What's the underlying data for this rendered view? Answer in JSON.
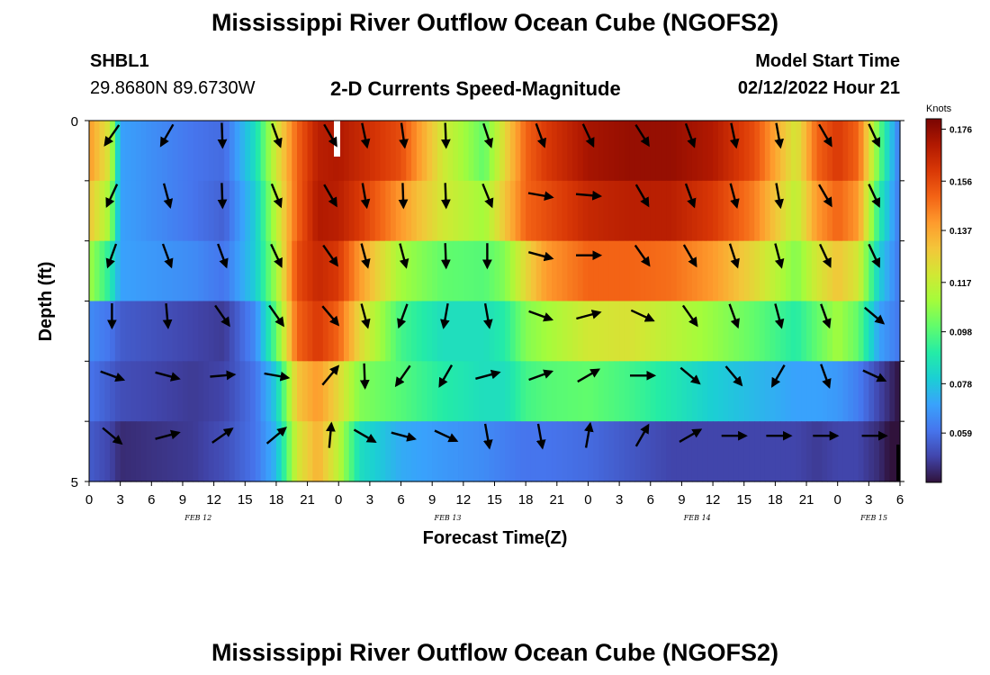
{
  "page": {
    "title": "Mississippi River Outflow Ocean Cube (NGOFS2)",
    "bottom_title": "Mississippi River Outflow Ocean Cube (NGOFS2)",
    "station_id": "SHBL1",
    "station_coords": "29.8680N  89.6730W",
    "subtitle": "2-D Currents Speed-Magnitude",
    "model_start_label": "Model Start Time",
    "model_start_value": "02/12/2022 Hour 21"
  },
  "chart_data": {
    "type": "heatmap",
    "title": "2-D Currents Speed-Magnitude",
    "xlabel": "Forecast Time(Z)",
    "ylabel": "Depth (ft)",
    "y_ticks": [
      "0",
      "5"
    ],
    "y_range": [
      0,
      5
    ],
    "x_tick_labels": [
      "0",
      "3",
      "6",
      "9",
      "12",
      "15",
      "18",
      "21",
      "0",
      "3",
      "6",
      "9",
      "12",
      "15",
      "18",
      "21",
      "0",
      "3",
      "6",
      "9",
      "12",
      "15",
      "18",
      "21",
      "0",
      "3",
      "6"
    ],
    "date_labels": [
      "FEB 12",
      "FEB 13",
      "FEB 14",
      "FEB 15"
    ],
    "x_range_hours": [
      0,
      78
    ],
    "colorbar": {
      "label": "Knots",
      "ticks": [
        "0.176",
        "0.156",
        "0.137",
        "0.117",
        "0.098",
        "0.078",
        "0.059"
      ],
      "range": [
        0.04,
        0.18
      ],
      "colors": [
        "#30123b",
        "#4145ab",
        "#4675ed",
        "#39a2fc",
        "#1bcfd4",
        "#24eca6",
        "#61fc6c",
        "#a4fc3b",
        "#d1e834",
        "#f3c63a",
        "#fe9b2d",
        "#f36315",
        "#d93806",
        "#b11901",
        "#7a0402"
      ]
    },
    "rows": 6,
    "speed_rows": [
      {
        "hours": [
          0,
          2,
          3,
          10,
          13,
          16,
          18,
          20,
          22,
          24,
          26,
          30,
          34,
          38,
          40,
          42,
          44,
          48,
          52,
          56,
          60,
          64,
          68,
          70,
          72,
          74,
          76,
          78
        ],
        "values": [
          0.14,
          0.12,
          0.07,
          0.06,
          0.058,
          0.085,
          0.12,
          0.15,
          0.168,
          0.17,
          0.165,
          0.155,
          0.12,
          0.1,
          0.125,
          0.15,
          0.16,
          0.172,
          0.175,
          0.175,
          0.17,
          0.155,
          0.12,
          0.15,
          0.16,
          0.15,
          0.1,
          0.06
        ]
      },
      {
        "hours": [
          0,
          2,
          3,
          10,
          13,
          16,
          18,
          20,
          22,
          24,
          26,
          30,
          34,
          38,
          40,
          42,
          44,
          48,
          52,
          56,
          60,
          64,
          68,
          70,
          72,
          74,
          76,
          78
        ],
        "values": [
          0.13,
          0.11,
          0.07,
          0.06,
          0.056,
          0.08,
          0.115,
          0.15,
          0.17,
          0.168,
          0.16,
          0.14,
          0.12,
          0.11,
          0.13,
          0.15,
          0.155,
          0.165,
          0.168,
          0.168,
          0.16,
          0.145,
          0.115,
          0.14,
          0.15,
          0.14,
          0.09,
          0.06
        ]
      },
      {
        "hours": [
          0,
          2,
          3,
          10,
          13,
          16,
          18,
          20,
          22,
          24,
          26,
          30,
          34,
          38,
          40,
          42,
          44,
          48,
          52,
          56,
          60,
          64,
          68,
          70,
          72,
          74,
          76,
          78
        ],
        "values": [
          0.11,
          0.09,
          0.07,
          0.065,
          0.06,
          0.08,
          0.11,
          0.155,
          0.165,
          0.16,
          0.14,
          0.11,
          0.1,
          0.098,
          0.105,
          0.125,
          0.14,
          0.15,
          0.15,
          0.148,
          0.14,
          0.125,
          0.105,
          0.12,
          0.13,
          0.12,
          0.08,
          0.06
        ]
      },
      {
        "hours": [
          0,
          2,
          3,
          10,
          13,
          16,
          18,
          20,
          22,
          24,
          26,
          30,
          34,
          38,
          40,
          42,
          44,
          48,
          52,
          56,
          60,
          64,
          68,
          70,
          72,
          74,
          76,
          78
        ],
        "values": [
          0.065,
          0.06,
          0.055,
          0.05,
          0.048,
          0.065,
          0.1,
          0.15,
          0.16,
          0.15,
          0.125,
          0.095,
          0.085,
          0.085,
          0.09,
          0.105,
          0.11,
          0.12,
          0.122,
          0.115,
          0.108,
          0.1,
          0.09,
          0.1,
          0.11,
          0.1,
          0.07,
          0.06
        ]
      },
      {
        "hours": [
          0,
          2,
          3,
          10,
          13,
          16,
          18,
          20,
          22,
          24,
          26,
          30,
          34,
          38,
          40,
          42,
          44,
          48,
          52,
          56,
          60,
          64,
          68,
          70,
          72,
          74,
          76,
          78
        ],
        "values": [
          0.06,
          0.055,
          0.052,
          0.048,
          0.05,
          0.06,
          0.08,
          0.13,
          0.14,
          0.125,
          0.105,
          0.098,
          0.09,
          0.085,
          0.085,
          0.095,
          0.098,
          0.1,
          0.095,
          0.088,
          0.08,
          0.075,
          0.07,
          0.07,
          0.068,
          0.062,
          0.05,
          0.04
        ]
      },
      {
        "hours": [
          0,
          2,
          3,
          10,
          13,
          16,
          18,
          20,
          22,
          24,
          26,
          30,
          34,
          38,
          40,
          42,
          44,
          48,
          52,
          56,
          60,
          64,
          68,
          70,
          72,
          74,
          76,
          78
        ],
        "values": [
          0.055,
          0.05,
          0.045,
          0.048,
          0.052,
          0.06,
          0.075,
          0.12,
          0.135,
          0.115,
          0.085,
          0.072,
          0.068,
          0.065,
          0.062,
          0.06,
          0.06,
          0.058,
          0.054,
          0.05,
          0.05,
          0.05,
          0.05,
          0.048,
          0.05,
          0.05,
          0.045,
          0.035
        ]
      }
    ],
    "arrow_hours": [
      2.2,
      7.5,
      12.8,
      18,
      23.2,
      26.5,
      30.2,
      34.3,
      38.3,
      43.4,
      48,
      53.2,
      57.8,
      62,
      66.3,
      70.8,
      75.5
    ],
    "arrow_rows": [
      [
        215,
        210,
        178,
        160,
        150,
        168,
        172,
        178,
        162,
        160,
        155,
        148,
        160,
        168,
        170,
        150,
        155
      ],
      [
        205,
        165,
        178,
        158,
        150,
        170,
        178,
        178,
        158,
        100,
        95,
        150,
        160,
        165,
        170,
        150,
        155
      ],
      [
        200,
        160,
        160,
        155,
        145,
        165,
        165,
        178,
        180,
        105,
        90,
        145,
        150,
        162,
        165,
        155,
        155
      ],
      [
        180,
        175,
        145,
        145,
        140,
        165,
        200,
        190,
        170,
        110,
        75,
        115,
        145,
        160,
        165,
        160,
        130
      ],
      [
        110,
        105,
        85,
        100,
        40,
        178,
        215,
        210,
        75,
        70,
        60,
        90,
        130,
        140,
        210,
        160,
        115
      ],
      [
        130,
        75,
        55,
        50,
        5,
        120,
        105,
        115,
        170,
        170,
        10,
        30,
        60,
        90,
        90,
        90,
        90
      ]
    ]
  }
}
